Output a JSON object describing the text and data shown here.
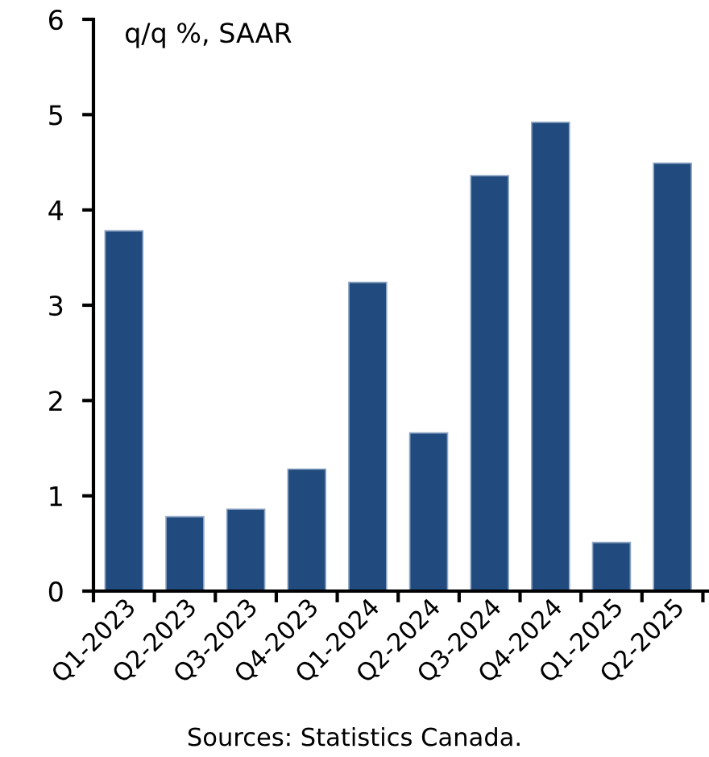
{
  "chart_data": {
    "type": "bar",
    "categories": [
      "Q1-2023",
      "Q2-2023",
      "Q3-2023",
      "Q4-2023",
      "Q1-2024",
      "Q2-2024",
      "Q3-2024",
      "Q4-2024",
      "Q1-2025",
      "Q2-2025"
    ],
    "values": [
      3.78,
      0.78,
      0.86,
      1.28,
      3.24,
      1.66,
      4.36,
      4.92,
      0.51,
      4.49
    ],
    "color": "#214b7e",
    "ylim": [
      0,
      6
    ],
    "yticks": [
      0,
      1,
      2,
      3,
      4,
      5,
      6
    ],
    "grid": false,
    "annotations": [
      "q/q %, SAAR",
      "Sources: Statistics Canada."
    ]
  }
}
